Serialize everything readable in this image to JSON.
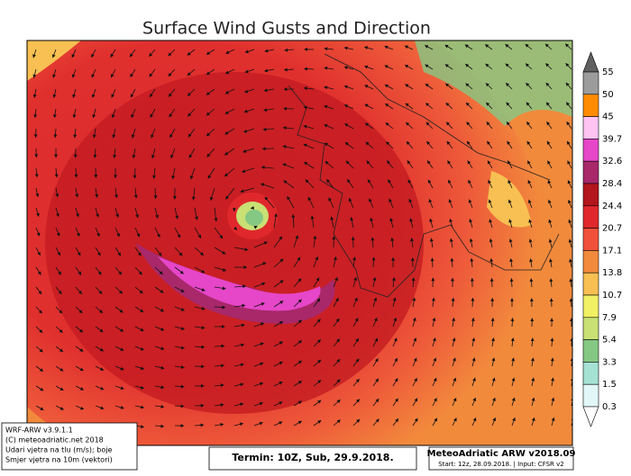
{
  "title": "Surface Wind Gusts and Direction",
  "colorbar": {
    "levels": [
      55,
      50,
      45,
      39.7,
      32.6,
      28.4,
      24.4,
      20.7,
      17.1,
      13.8,
      10.7,
      7.9,
      5.4,
      3.3,
      1.5,
      0.3
    ],
    "colors": [
      "#9c9c9c",
      "#ff8c00",
      "#ffc4f2",
      "#e646c8",
      "#a8286a",
      "#b3161c",
      "#e0282c",
      "#f0503a",
      "#f28a3c",
      "#f8c052",
      "#f2f064",
      "#c8e074",
      "#84c884",
      "#a6e2d4",
      "#e2f8f8"
    ],
    "top_color": "#606060"
  },
  "info_box": [
    "WRF-ARW v3.9.1.1",
    "(C) meteoadriatic.net 2018",
    "Udari vjetra na tlu (m/s); boje",
    "Smjer vjetra na 10m (vektori)"
  ],
  "footer": {
    "termin": "Termin: 10Z, Sub, 29.9.2018.",
    "model": "MeteoAdriatic ARW v2018.09",
    "start": "Start: 12z, 28.09.2018. | Input: CFSR v2"
  }
}
